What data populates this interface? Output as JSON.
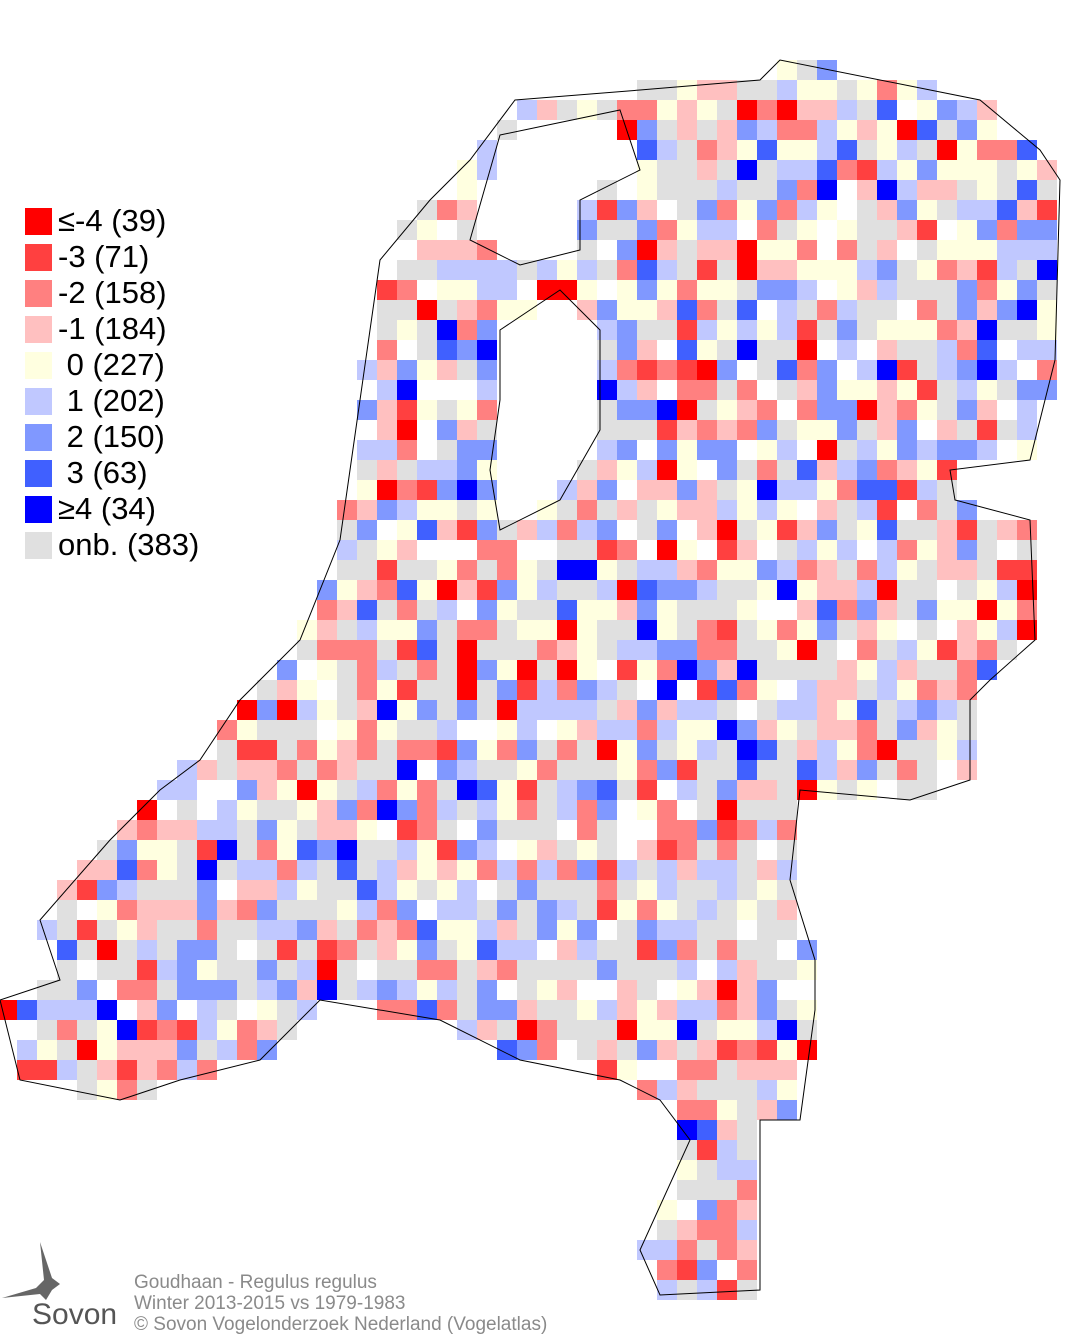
{
  "legend": [
    {
      "label": "≤-4 (39)",
      "color": "#ff0000",
      "count": 39
    },
    {
      "label": "-3 (71)",
      "color": "#ff4040",
      "count": 71
    },
    {
      "label": "-2 (158)",
      "color": "#ff8080",
      "count": 158
    },
    {
      "label": "-1 (184)",
      "color": "#ffc0c0",
      "count": 184
    },
    {
      "label": " 0 (227)",
      "color": "#ffffe0",
      "count": 227
    },
    {
      "label": " 1 (202)",
      "color": "#c0c8ff",
      "count": 202
    },
    {
      "label": " 2 (150)",
      "color": "#8098ff",
      "count": 150
    },
    {
      "label": " 3 (63)",
      "color": "#4060ff",
      "count": 63
    },
    {
      "label": "≥4 (34)",
      "color": "#0000ff",
      "count": 34
    },
    {
      "label": "onb. (383)",
      "color": "#e0e0e0",
      "count": 383
    }
  ],
  "caption": {
    "species": "Goudhaan - Regulus regulus",
    "period": "Winter 2013-2015 vs 1979-1983",
    "copyright": "© Sovon Vogelonderzoek Nederland (Vogelatlas)"
  },
  "logo": {
    "text": "Sovon"
  }
}
